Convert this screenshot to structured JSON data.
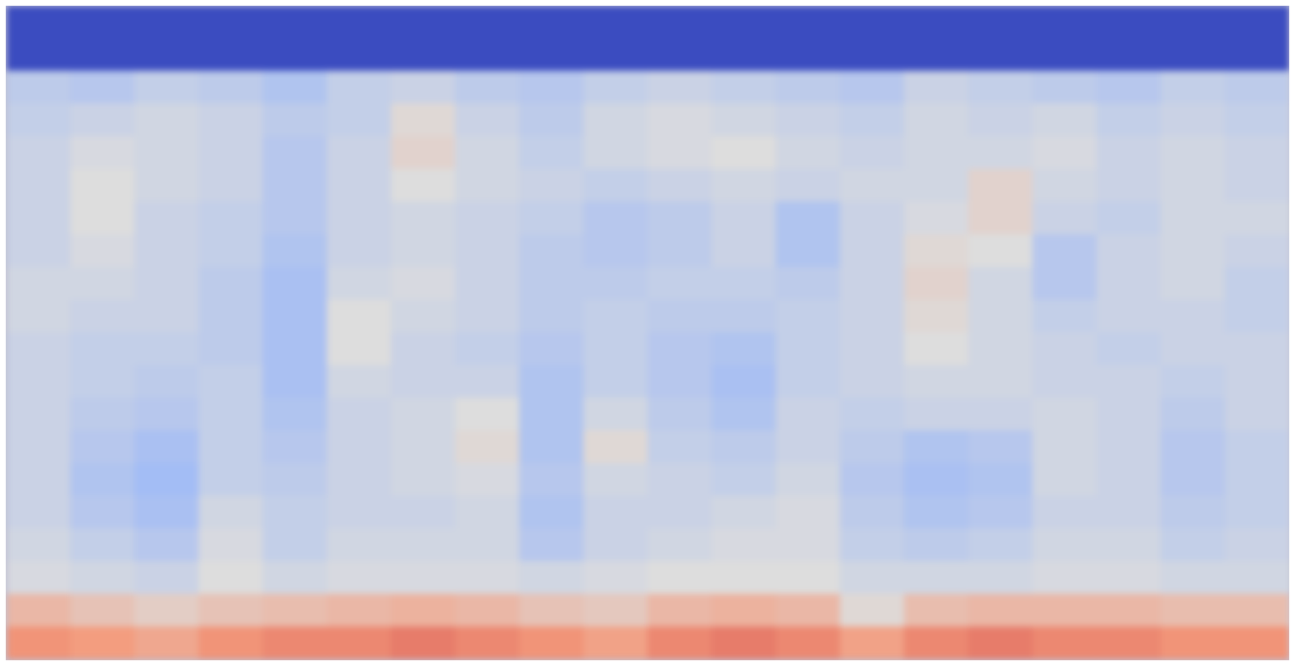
{
  "chart_data": {
    "type": "heatmap",
    "tick_labels": false,
    "xlim": [
      0,
      20
    ],
    "ylim": [
      0,
      20
    ],
    "zlim": [
      0,
      1
    ],
    "color": "coolwarm",
    "cells": [
      [
        0,
        0,
        0,
        0,
        0,
        0,
        0,
        0,
        0,
        0,
        0,
        0,
        0,
        0,
        0,
        0,
        0,
        0,
        0,
        0
      ],
      [
        0,
        0,
        0,
        0,
        0,
        0,
        0,
        0,
        0,
        0,
        0,
        0,
        0,
        0,
        0,
        0,
        0,
        0,
        0,
        0
      ],
      [
        0.4,
        0.38,
        0.42,
        0.4,
        0.36,
        0.42,
        0.44,
        0.4,
        0.38,
        0.42,
        0.44,
        0.42,
        0.4,
        0.38,
        0.44,
        0.42,
        0.4,
        0.38,
        0.42,
        0.4
      ],
      [
        0.42,
        0.44,
        0.46,
        0.44,
        0.4,
        0.42,
        0.52,
        0.44,
        0.4,
        0.46,
        0.48,
        0.46,
        0.44,
        0.42,
        0.46,
        0.44,
        0.46,
        0.42,
        0.44,
        0.42
      ],
      [
        0.44,
        0.48,
        0.46,
        0.44,
        0.38,
        0.44,
        0.54,
        0.46,
        0.42,
        0.46,
        0.48,
        0.5,
        0.46,
        0.44,
        0.46,
        0.46,
        0.48,
        0.44,
        0.46,
        0.44
      ],
      [
        0.44,
        0.5,
        0.46,
        0.44,
        0.38,
        0.44,
        0.5,
        0.46,
        0.44,
        0.42,
        0.44,
        0.46,
        0.44,
        0.46,
        0.46,
        0.54,
        0.46,
        0.44,
        0.46,
        0.44
      ],
      [
        0.44,
        0.5,
        0.44,
        0.42,
        0.38,
        0.44,
        0.46,
        0.44,
        0.42,
        0.38,
        0.4,
        0.44,
        0.36,
        0.44,
        0.48,
        0.54,
        0.44,
        0.42,
        0.46,
        0.46
      ],
      [
        0.44,
        0.48,
        0.44,
        0.42,
        0.36,
        0.44,
        0.46,
        0.44,
        0.4,
        0.38,
        0.4,
        0.44,
        0.36,
        0.44,
        0.52,
        0.5,
        0.38,
        0.44,
        0.46,
        0.44
      ],
      [
        0.46,
        0.46,
        0.44,
        0.4,
        0.34,
        0.46,
        0.48,
        0.44,
        0.4,
        0.4,
        0.42,
        0.42,
        0.4,
        0.44,
        0.54,
        0.46,
        0.38,
        0.44,
        0.46,
        0.42
      ],
      [
        0.46,
        0.44,
        0.44,
        0.4,
        0.34,
        0.5,
        0.46,
        0.44,
        0.4,
        0.42,
        0.4,
        0.4,
        0.42,
        0.44,
        0.52,
        0.46,
        0.42,
        0.44,
        0.44,
        0.42
      ],
      [
        0.44,
        0.42,
        0.42,
        0.4,
        0.34,
        0.5,
        0.44,
        0.42,
        0.38,
        0.42,
        0.38,
        0.36,
        0.42,
        0.44,
        0.5,
        0.46,
        0.44,
        0.42,
        0.44,
        0.44
      ],
      [
        0.44,
        0.42,
        0.4,
        0.42,
        0.34,
        0.46,
        0.44,
        0.44,
        0.36,
        0.42,
        0.38,
        0.34,
        0.42,
        0.44,
        0.46,
        0.46,
        0.44,
        0.44,
        0.42,
        0.44
      ],
      [
        0.44,
        0.4,
        0.38,
        0.42,
        0.36,
        0.44,
        0.46,
        0.5,
        0.36,
        0.46,
        0.4,
        0.36,
        0.44,
        0.42,
        0.44,
        0.44,
        0.46,
        0.44,
        0.4,
        0.44
      ],
      [
        0.44,
        0.38,
        0.34,
        0.42,
        0.38,
        0.44,
        0.46,
        0.52,
        0.36,
        0.52,
        0.42,
        0.4,
        0.44,
        0.4,
        0.36,
        0.38,
        0.46,
        0.44,
        0.38,
        0.42
      ],
      [
        0.44,
        0.36,
        0.32,
        0.42,
        0.4,
        0.44,
        0.46,
        0.48,
        0.38,
        0.46,
        0.44,
        0.42,
        0.46,
        0.38,
        0.34,
        0.36,
        0.46,
        0.44,
        0.38,
        0.42
      ],
      [
        0.44,
        0.38,
        0.34,
        0.46,
        0.42,
        0.44,
        0.44,
        0.46,
        0.36,
        0.44,
        0.44,
        0.46,
        0.48,
        0.4,
        0.36,
        0.38,
        0.44,
        0.44,
        0.4,
        0.42
      ],
      [
        0.46,
        0.42,
        0.38,
        0.48,
        0.42,
        0.46,
        0.46,
        0.46,
        0.38,
        0.44,
        0.46,
        0.48,
        0.48,
        0.42,
        0.4,
        0.42,
        0.46,
        0.46,
        0.42,
        0.44
      ],
      [
        0.48,
        0.46,
        0.44,
        0.5,
        0.46,
        0.48,
        0.48,
        0.48,
        0.46,
        0.48,
        0.5,
        0.5,
        0.5,
        0.46,
        0.46,
        0.46,
        0.48,
        0.48,
        0.46,
        0.46
      ],
      [
        0.64,
        0.6,
        0.56,
        0.6,
        0.62,
        0.64,
        0.66,
        0.64,
        0.6,
        0.58,
        0.64,
        0.66,
        0.64,
        0.52,
        0.62,
        0.64,
        0.64,
        0.64,
        0.62,
        0.62
      ],
      [
        0.76,
        0.74,
        0.7,
        0.76,
        0.78,
        0.78,
        0.8,
        0.78,
        0.76,
        0.72,
        0.78,
        0.8,
        0.78,
        0.72,
        0.78,
        0.8,
        0.78,
        0.78,
        0.76,
        0.76
      ]
    ]
  }
}
